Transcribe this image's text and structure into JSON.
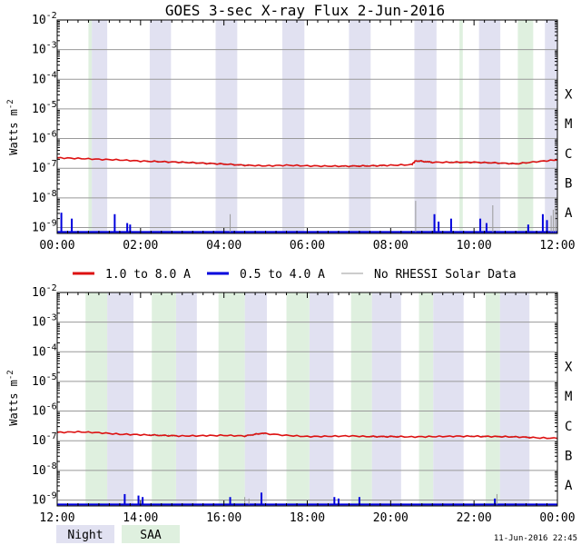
{
  "title": "GOES 3-sec X-ray Flux     2-Jun-2016",
  "footer_timestamp": "11-Jun-2016 22:45",
  "ylabel_main": "Watts m",
  "ylabel_sup": "-2",
  "legend": {
    "red": "1.0 to 8.0 A",
    "blue": "0.5 to 4.0 A",
    "gray": "No RHESSI Solar Data"
  },
  "shade_legend": {
    "night": "Night",
    "saa": "SAA"
  },
  "colors": {
    "night": "#e1e1f1",
    "saa": "#dff0df",
    "red": "#dd1111",
    "blue": "#0000dd",
    "gray": "#999999",
    "grid": "#999999"
  },
  "chart_data": [
    {
      "type": "line",
      "title": "GOES 3-sec X-ray Flux     2-Jun-2016",
      "x_range_hours": [
        0,
        12
      ],
      "x_tick_labels": [
        "00:00",
        "02:00",
        "04:00",
        "06:00",
        "08:00",
        "10:00",
        "12:00"
      ],
      "ylim_log10": [
        -9.2,
        -2
      ],
      "y_tick_exponents": [
        -2,
        -3,
        -4,
        -5,
        -6,
        -7,
        -8,
        -9
      ],
      "flare_classes": [
        {
          "label": "X",
          "exp": -4
        },
        {
          "label": "M",
          "exp": -5
        },
        {
          "label": "C",
          "exp": -6
        },
        {
          "label": "B",
          "exp": -7
        },
        {
          "label": "A",
          "exp": -8
        }
      ],
      "saa_bands": [
        [
          0.75,
          0.83
        ],
        [
          9.65,
          9.73
        ],
        [
          11.05,
          11.42
        ]
      ],
      "night_bands": [
        [
          0.83,
          1.2
        ],
        [
          2.22,
          2.73
        ],
        [
          3.8,
          4.32
        ],
        [
          5.4,
          5.93
        ],
        [
          7.0,
          7.52
        ],
        [
          8.57,
          9.1
        ],
        [
          10.12,
          10.63
        ],
        [
          11.7,
          12.0
        ]
      ],
      "series": [
        {
          "name": "1.0 to 8.0 A",
          "color": "red",
          "log10_points": [
            [
              0,
              -6.65
            ],
            [
              0.5,
              -6.67
            ],
            [
              1,
              -6.7
            ],
            [
              1.5,
              -6.72
            ],
            [
              2,
              -6.76
            ],
            [
              2.5,
              -6.78
            ],
            [
              3,
              -6.8
            ],
            [
              3.5,
              -6.83
            ],
            [
              4,
              -6.86
            ],
            [
              4.5,
              -6.9
            ],
            [
              5,
              -6.92
            ],
            [
              5.5,
              -6.9
            ],
            [
              6,
              -6.92
            ],
            [
              6.5,
              -6.93
            ],
            [
              7,
              -6.93
            ],
            [
              7.5,
              -6.92
            ],
            [
              8,
              -6.9
            ],
            [
              8.5,
              -6.88
            ],
            [
              8.6,
              -6.75
            ],
            [
              9,
              -6.8
            ],
            [
              9.5,
              -6.8
            ],
            [
              10,
              -6.8
            ],
            [
              10.5,
              -6.82
            ],
            [
              11,
              -6.85
            ],
            [
              11.5,
              -6.78
            ],
            [
              12,
              -6.72
            ]
          ]
        },
        {
          "name": "0.5 to 4.0 A",
          "color": "blue",
          "baseline_log10": -9.15,
          "spikes": [
            [
              0.1,
              -8.5
            ],
            [
              0.35,
              -8.7
            ],
            [
              1.38,
              -8.55
            ],
            [
              1.68,
              -8.85
            ],
            [
              1.75,
              -8.9
            ],
            [
              9.05,
              -8.55
            ],
            [
              9.15,
              -8.8
            ],
            [
              9.45,
              -8.7
            ],
            [
              10.15,
              -8.7
            ],
            [
              10.3,
              -8.85
            ],
            [
              11.3,
              -8.9
            ],
            [
              11.65,
              -8.55
            ],
            [
              11.75,
              -8.75
            ]
          ]
        },
        {
          "name": "No RHESSI Solar Data",
          "color": "gray",
          "line_ranges": [
            [
              2.1,
              4.6
            ],
            [
              6.8,
              7.9
            ],
            [
              8.6,
              9.0
            ],
            [
              9.4,
              11.8
            ]
          ],
          "spikes": [
            [
              4.15,
              -8.55
            ],
            [
              8.6,
              -8.1
            ],
            [
              10.45,
              -8.25
            ],
            [
              11.85,
              -8.6
            ],
            [
              11.9,
              -8.4
            ],
            [
              11.95,
              -8.3
            ]
          ]
        }
      ]
    },
    {
      "type": "line",
      "title": "",
      "x_range_hours": [
        12,
        24
      ],
      "x_tick_labels": [
        "12:00",
        "14:00",
        "16:00",
        "18:00",
        "20:00",
        "22:00",
        "00:00"
      ],
      "ylim_log10": [
        -9.2,
        -2
      ],
      "y_tick_exponents": [
        -2,
        -3,
        -4,
        -5,
        -6,
        -7,
        -8,
        -9
      ],
      "flare_classes": [
        {
          "label": "X",
          "exp": -4
        },
        {
          "label": "M",
          "exp": -5
        },
        {
          "label": "C",
          "exp": -6
        },
        {
          "label": "B",
          "exp": -7
        },
        {
          "label": "A",
          "exp": -8
        }
      ],
      "saa_bands": [
        [
          12.68,
          13.2
        ],
        [
          14.27,
          14.85
        ],
        [
          15.87,
          16.5
        ],
        [
          17.5,
          18.05
        ],
        [
          19.05,
          19.55
        ],
        [
          20.68,
          21.02
        ],
        [
          22.28,
          22.62
        ]
      ],
      "night_bands": [
        [
          13.2,
          13.83
        ],
        [
          14.85,
          15.35
        ],
        [
          16.5,
          17.03
        ],
        [
          18.05,
          18.63
        ],
        [
          19.55,
          20.25
        ],
        [
          21.02,
          21.75
        ],
        [
          22.62,
          23.33
        ]
      ],
      "series": [
        {
          "name": "1.0 to 8.0 A",
          "color": "red",
          "log10_points": [
            [
              12,
              -6.72
            ],
            [
              12.5,
              -6.7
            ],
            [
              13,
              -6.73
            ],
            [
              13.5,
              -6.78
            ],
            [
              14,
              -6.8
            ],
            [
              14.5,
              -6.82
            ],
            [
              15,
              -6.84
            ],
            [
              15.5,
              -6.83
            ],
            [
              16,
              -6.82
            ],
            [
              16.5,
              -6.84
            ],
            [
              16.9,
              -6.75
            ],
            [
              17.5,
              -6.82
            ],
            [
              18,
              -6.86
            ],
            [
              18.5,
              -6.85
            ],
            [
              19,
              -6.84
            ],
            [
              19.5,
              -6.86
            ],
            [
              20,
              -6.86
            ],
            [
              20.5,
              -6.87
            ],
            [
              21,
              -6.86
            ],
            [
              21.5,
              -6.85
            ],
            [
              22,
              -6.85
            ],
            [
              22.5,
              -6.86
            ],
            [
              23,
              -6.87
            ],
            [
              23.5,
              -6.9
            ],
            [
              24,
              -6.92
            ]
          ]
        },
        {
          "name": "0.5 to 4.0 A",
          "color": "blue",
          "baseline_log10": -9.15,
          "spikes": [
            [
              13.62,
              -8.8
            ],
            [
              13.95,
              -8.85
            ],
            [
              14.05,
              -8.9
            ],
            [
              16.15,
              -8.9
            ],
            [
              16.9,
              -8.75
            ],
            [
              18.65,
              -8.9
            ],
            [
              18.75,
              -8.95
            ],
            [
              19.25,
              -8.9
            ],
            [
              22.5,
              -8.95
            ]
          ]
        },
        {
          "name": "No RHESSI Solar Data",
          "color": "gray",
          "line_ranges": [
            [
              14.2,
              14.9
            ],
            [
              16.5,
              17.0
            ],
            [
              19.5,
              20.2
            ],
            [
              21.9,
              23.4
            ]
          ],
          "spikes": [
            [
              16.5,
              -8.9
            ],
            [
              16.6,
              -8.95
            ],
            [
              22.55,
              -8.8
            ]
          ]
        }
      ]
    }
  ]
}
